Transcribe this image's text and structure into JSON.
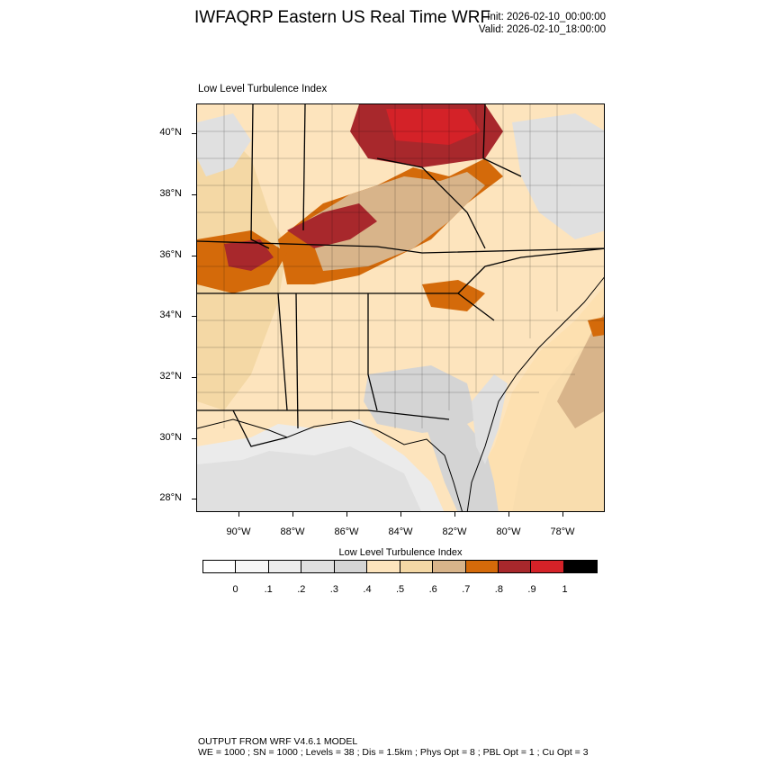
{
  "header": {
    "title": "IWFAQRP Eastern US Real Time WRF",
    "init": "Init: 2026-02-10_00:00:00",
    "valid": "Valid: 2026-02-10_18:00:00"
  },
  "plot": {
    "title": "Low Level Turbulence Index",
    "lat_labels": [
      "40°N",
      "38°N",
      "36°N",
      "34°N",
      "32°N",
      "30°N",
      "28°N"
    ],
    "lon_labels": [
      "90°W",
      "88°W",
      "86°W",
      "84°W",
      "82°W",
      "80°W",
      "78°W"
    ]
  },
  "colorbar": {
    "title": "Low Level Turbulence Index",
    "colors": [
      "#ffffff",
      "#f7f7f7",
      "#ededed",
      "#e0e0e0",
      "#d4d4d4",
      "#fde4bd",
      "#f4d8a5",
      "#d8b48a",
      "#d46a0a",
      "#a8282c",
      "#d42228",
      "#000000"
    ],
    "labels": [
      "0",
      ".1",
      ".2",
      ".3",
      ".4",
      ".5",
      ".6",
      ".7",
      ".8",
      ".9",
      "1"
    ]
  },
  "footer": {
    "line1": "OUTPUT FROM WRF V4.6.1 MODEL",
    "line2": "WE = 1000 ; SN = 1000 ; Levels = 38 ; Dis = 1.5km ; Phys Opt = 8 ; PBL Opt = 1 ; Cu Opt = 3"
  }
}
